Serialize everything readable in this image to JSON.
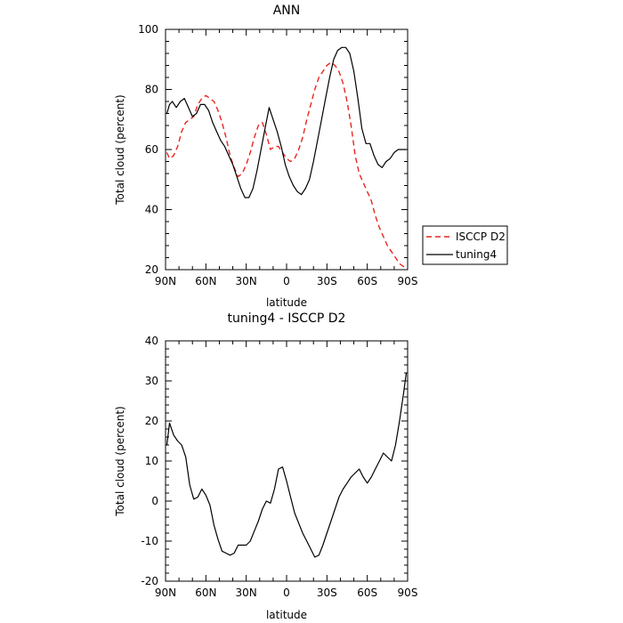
{
  "chart_data": [
    {
      "type": "line",
      "title": "ANN",
      "xlabel": "latitude",
      "ylabel": "Total cloud (percent)",
      "xlim": [
        90,
        -90
      ],
      "ylim": [
        20,
        100
      ],
      "xticks": [
        {
          "value": 90,
          "label": "90N"
        },
        {
          "value": 60,
          "label": "60N"
        },
        {
          "value": 30,
          "label": "30N"
        },
        {
          "value": 0,
          "label": "0"
        },
        {
          "value": -30,
          "label": "30S"
        },
        {
          "value": -60,
          "label": "60S"
        },
        {
          "value": -90,
          "label": "90S"
        }
      ],
      "yticks": [
        20,
        40,
        60,
        80,
        100
      ],
      "legend": {
        "placement": "right"
      },
      "series": [
        {
          "name": "ISCCP D2",
          "color": "#e8251f",
          "dash": "dashed",
          "x": [
            89,
            87,
            84,
            81,
            78,
            75,
            72,
            69,
            66,
            63,
            60,
            57,
            54,
            51,
            48,
            45,
            42,
            39,
            36,
            33,
            30,
            27,
            24,
            21,
            18,
            15,
            12,
            9,
            6,
            3,
            0,
            -3,
            -6,
            -9,
            -12,
            -15,
            -18,
            -21,
            -24,
            -27,
            -30,
            -33,
            -36,
            -39,
            -42,
            -45,
            -48,
            -51,
            -54,
            -57,
            -60,
            -63,
            -66,
            -69,
            -72,
            -75,
            -78,
            -81,
            -84,
            -87,
            -89
          ],
          "y": [
            59,
            57,
            58,
            61,
            66,
            69,
            70,
            71,
            75,
            77,
            78,
            77,
            76,
            73,
            69,
            64,
            58,
            54,
            51,
            52,
            55,
            59,
            64,
            68,
            69,
            65,
            60,
            61,
            61,
            59,
            57,
            56,
            57,
            60,
            64,
            70,
            75,
            80,
            84,
            86,
            88,
            89,
            88,
            86,
            82,
            76,
            68,
            58,
            52,
            49,
            46,
            43,
            38,
            34,
            31,
            28,
            26,
            24,
            22,
            21,
            20
          ]
        },
        {
          "name": "tuning4",
          "color": "#000000",
          "dash": "solid",
          "x": [
            89,
            87,
            85,
            82,
            79,
            76,
            73,
            70,
            67,
            64,
            61,
            58,
            55,
            52,
            49,
            46,
            43,
            40,
            37,
            34,
            31,
            28,
            25,
            22,
            19,
            16,
            13,
            10,
            7,
            4,
            1,
            -2,
            -5,
            -8,
            -11,
            -14,
            -17,
            -20,
            -23,
            -26,
            -29,
            -32,
            -35,
            -38,
            -41,
            -44,
            -47,
            -50,
            -53,
            -56,
            -59,
            -62,
            -65,
            -68,
            -71,
            -74,
            -77,
            -80,
            -83,
            -86,
            -89
          ],
          "y": [
            72,
            75,
            76,
            74,
            76,
            77,
            74,
            71,
            72,
            75,
            75,
            73,
            69,
            66,
            63,
            61,
            58,
            55,
            51,
            47,
            44,
            44,
            47,
            53,
            60,
            67,
            74,
            70,
            66,
            61,
            55,
            51,
            48,
            46,
            45,
            47,
            50,
            56,
            63,
            70,
            77,
            84,
            90,
            93,
            94,
            94,
            92,
            86,
            77,
            67,
            62,
            62,
            58,
            55,
            54,
            56,
            57,
            59,
            60,
            60,
            60
          ]
        }
      ]
    },
    {
      "type": "line",
      "title": "tuning4 - ISCCP D2",
      "xlabel": "latitude",
      "ylabel": "Total cloud (percent)",
      "xlim": [
        90,
        -90
      ],
      "ylim": [
        -20,
        40
      ],
      "xticks": [
        {
          "value": 90,
          "label": "90N"
        },
        {
          "value": 60,
          "label": "60N"
        },
        {
          "value": 30,
          "label": "30N"
        },
        {
          "value": 0,
          "label": "0"
        },
        {
          "value": -30,
          "label": "30S"
        },
        {
          "value": -60,
          "label": "60S"
        },
        {
          "value": -90,
          "label": "90S"
        }
      ],
      "yticks": [
        -20,
        -10,
        0,
        10,
        20,
        30,
        40
      ],
      "series": [
        {
          "name": "",
          "color": "#000000",
          "dash": "solid",
          "x": [
            89,
            87,
            84,
            81,
            78,
            75,
            72,
            69,
            66,
            63,
            60,
            57,
            54,
            51,
            48,
            45,
            42,
            39,
            36,
            33,
            30,
            27,
            24,
            21,
            18,
            15,
            12,
            9,
            6,
            3,
            0,
            -3,
            -6,
            -9,
            -12,
            -15,
            -18,
            -21,
            -24,
            -27,
            -30,
            -33,
            -36,
            -39,
            -42,
            -45,
            -48,
            -51,
            -54,
            -57,
            -60,
            -63,
            -66,
            -69,
            -72,
            -75,
            -78,
            -81,
            -84,
            -87,
            -89
          ],
          "y": [
            14,
            19.5,
            16.5,
            15,
            14,
            11,
            4,
            0.5,
            1,
            3,
            1.5,
            -1,
            -6,
            -9.5,
            -12.5,
            -13,
            -13.5,
            -13,
            -11,
            -11,
            -11,
            -10,
            -7.5,
            -5,
            -2,
            0,
            -0.5,
            3,
            8,
            8.5,
            5,
            1,
            -3,
            -5.5,
            -8,
            -10,
            -12,
            -14,
            -13.5,
            -11,
            -8,
            -5,
            -2,
            1,
            3,
            4.5,
            6,
            7,
            8,
            6,
            4.5,
            6,
            8,
            10,
            12,
            11,
            10,
            14,
            20,
            27,
            32
          ]
        }
      ]
    }
  ]
}
